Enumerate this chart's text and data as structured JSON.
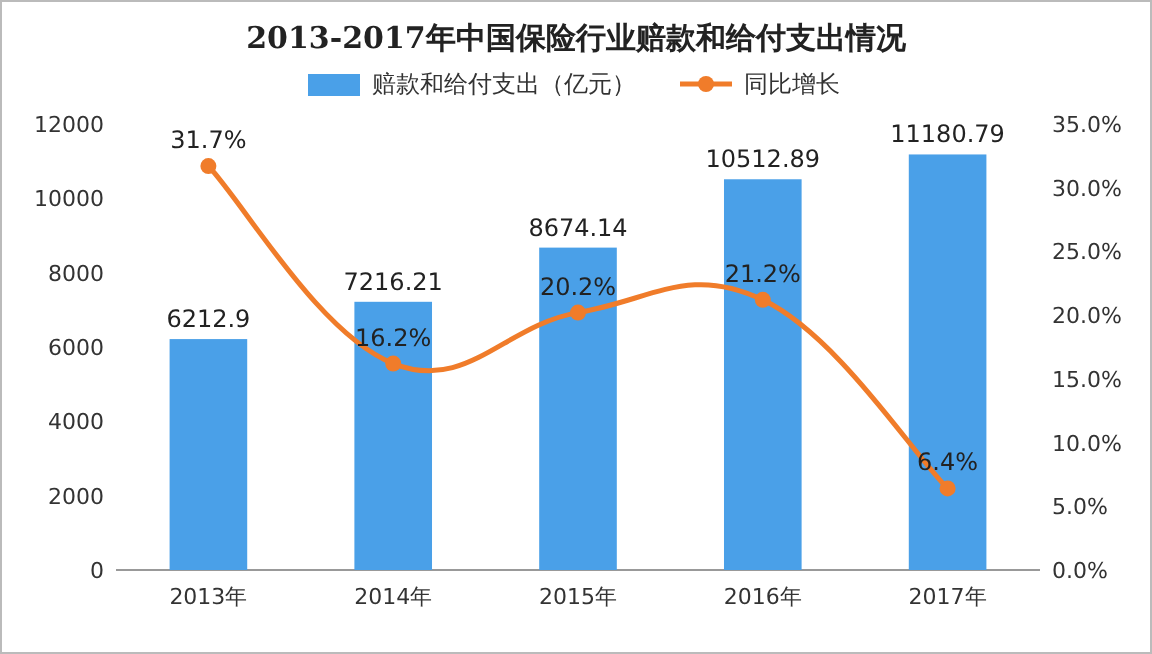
{
  "chart_data": {
    "type": "bar",
    "title": "2013-2017年中国保险行业赔款和给付支出情况",
    "categories": [
      "2013年",
      "2014年",
      "2015年",
      "2016年",
      "2017年"
    ],
    "series": [
      {
        "name": "赔款和给付支出（亿元）",
        "color": "#4aa0e8",
        "values": [
          6212.9,
          7216.21,
          8674.14,
          10512.89,
          11180.79
        ],
        "value_labels": [
          "6212.9",
          "7216.21",
          "8674.14",
          "10512.89",
          "11180.79"
        ]
      },
      {
        "name": "同比增长",
        "type": "line",
        "axis": "y2",
        "color": "#f07c2a",
        "marker": "circle",
        "values": [
          31.7,
          16.2,
          20.2,
          21.2,
          6.4
        ],
        "value_labels": [
          "31.7%",
          "16.2%",
          "20.2%",
          "21.2%",
          "6.4%"
        ]
      }
    ],
    "ylim": [
      0,
      12000
    ],
    "yticks": [
      0,
      2000,
      4000,
      6000,
      8000,
      10000,
      12000
    ],
    "y2lim": [
      0,
      35
    ],
    "y2ticks": [
      {
        "value": 0,
        "label": "0.0%"
      },
      {
        "value": 5,
        "label": "5.0%"
      },
      {
        "value": 10,
        "label": "10.0%"
      },
      {
        "value": 15,
        "label": "15.0%"
      },
      {
        "value": 20,
        "label": "20.0%"
      },
      {
        "value": 25,
        "label": "25.0%"
      },
      {
        "value": 30,
        "label": "30.0%"
      },
      {
        "value": 35,
        "label": "35.0%"
      }
    ],
    "legend": "top"
  }
}
